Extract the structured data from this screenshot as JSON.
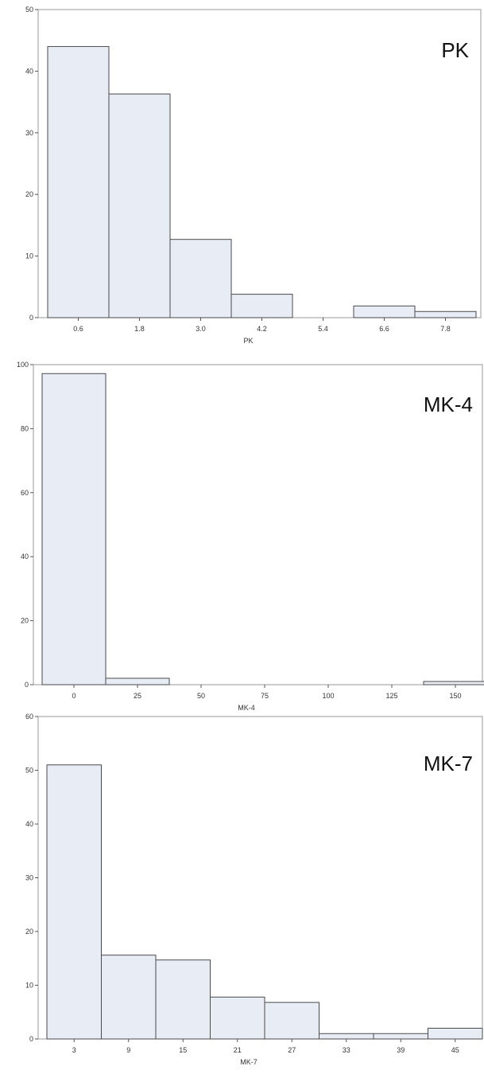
{
  "colors": {
    "bar_fill": "#e8ecf5",
    "bar_stroke": "#4a4a4a",
    "frame": "#9a9a9a"
  },
  "chart_data": [
    {
      "type": "bar",
      "panel_label": "PK",
      "xlabel": "PK",
      "ylabel": "",
      "categories": [
        "0.6",
        "1.8",
        "3.0",
        "4.2",
        "5.4",
        "6.6",
        "7.8"
      ],
      "values": [
        44,
        36.3,
        12.7,
        3.8,
        0,
        1.9,
        1.0
      ],
      "ylim": [
        0,
        50
      ],
      "yticks": [
        0,
        10,
        20,
        30,
        40,
        50
      ],
      "grid": false
    },
    {
      "type": "bar",
      "panel_label": "MK-4",
      "xlabel": "MK-4",
      "ylabel": "",
      "categories": [
        "0",
        "25",
        "50",
        "75",
        "100",
        "125",
        "150"
      ],
      "values": [
        97.2,
        2.0,
        0,
        0,
        0,
        0,
        1.0
      ],
      "ylim": [
        0,
        100
      ],
      "yticks": [
        0,
        20,
        40,
        60,
        80,
        100
      ],
      "grid": false
    },
    {
      "type": "bar",
      "panel_label": "MK-7",
      "xlabel": "MK-7",
      "ylabel": "",
      "categories": [
        "3",
        "9",
        "15",
        "21",
        "27",
        "33",
        "39",
        "45"
      ],
      "values": [
        51,
        15.6,
        14.7,
        7.8,
        6.8,
        1.0,
        1.0,
        2.0
      ],
      "ylim": [
        0,
        60
      ],
      "yticks": [
        0,
        10,
        20,
        30,
        40,
        50,
        60
      ],
      "grid": false
    }
  ]
}
